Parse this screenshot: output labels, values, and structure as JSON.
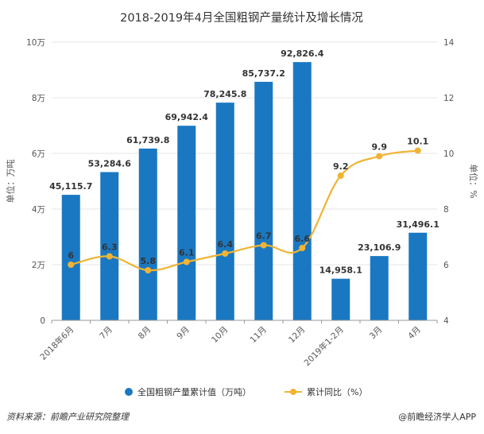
{
  "chart_data": {
    "type": "bar+line",
    "title": "2018-2019年4月全国粗钢产量统计及增长情况",
    "categories": [
      "2018年6月",
      "7月",
      "8月",
      "9月",
      "10月",
      "11月",
      "12月",
      "2019年1-2月",
      "3月",
      "4月"
    ],
    "bar_series": {
      "name": "全国粗钢产量累计值（万吨）",
      "values": [
        45115.7,
        53284.6,
        61739.8,
        69942.4,
        78245.8,
        85737.2,
        92826.4,
        14958.1,
        23106.9,
        31496.1
      ],
      "labels": [
        "45,115.7",
        "53,284.6",
        "61,739.8",
        "69,942.4",
        "78,245.8",
        "85,737.2",
        "92,826.4",
        "14,958.1",
        "23,106.9",
        "31,496.1"
      ],
      "color": "#1a78c2"
    },
    "line_series": {
      "name": "累计同比（%）",
      "values": [
        6,
        6.3,
        5.8,
        6.1,
        6.4,
        6.7,
        6.6,
        9.2,
        9.9,
        10.1
      ],
      "labels": [
        "6",
        "6.3",
        "5.8",
        "6.1",
        "6.4",
        "6.7",
        "6.6",
        "9.2",
        "9.9",
        "10.1"
      ],
      "color": "#f0b434"
    },
    "y_left": {
      "label": "单位：万吨",
      "ylim": [
        0,
        100000
      ],
      "ticks": [
        0,
        20000,
        40000,
        60000,
        80000,
        100000
      ],
      "tick_labels": [
        "0",
        "2万",
        "4万",
        "6万",
        "8万",
        "10万"
      ]
    },
    "y_right": {
      "label": "单位：%",
      "ylim": [
        4,
        14
      ],
      "ticks": [
        4,
        6,
        8,
        10,
        12,
        14
      ],
      "tick_labels": [
        "4",
        "6",
        "8",
        "10",
        "12",
        "14"
      ]
    },
    "grid": true,
    "legend": "bottom-center"
  },
  "footer": {
    "source": "资料来源：前瞻产业研究院整理",
    "brand": "@前瞻经济学人APP"
  }
}
